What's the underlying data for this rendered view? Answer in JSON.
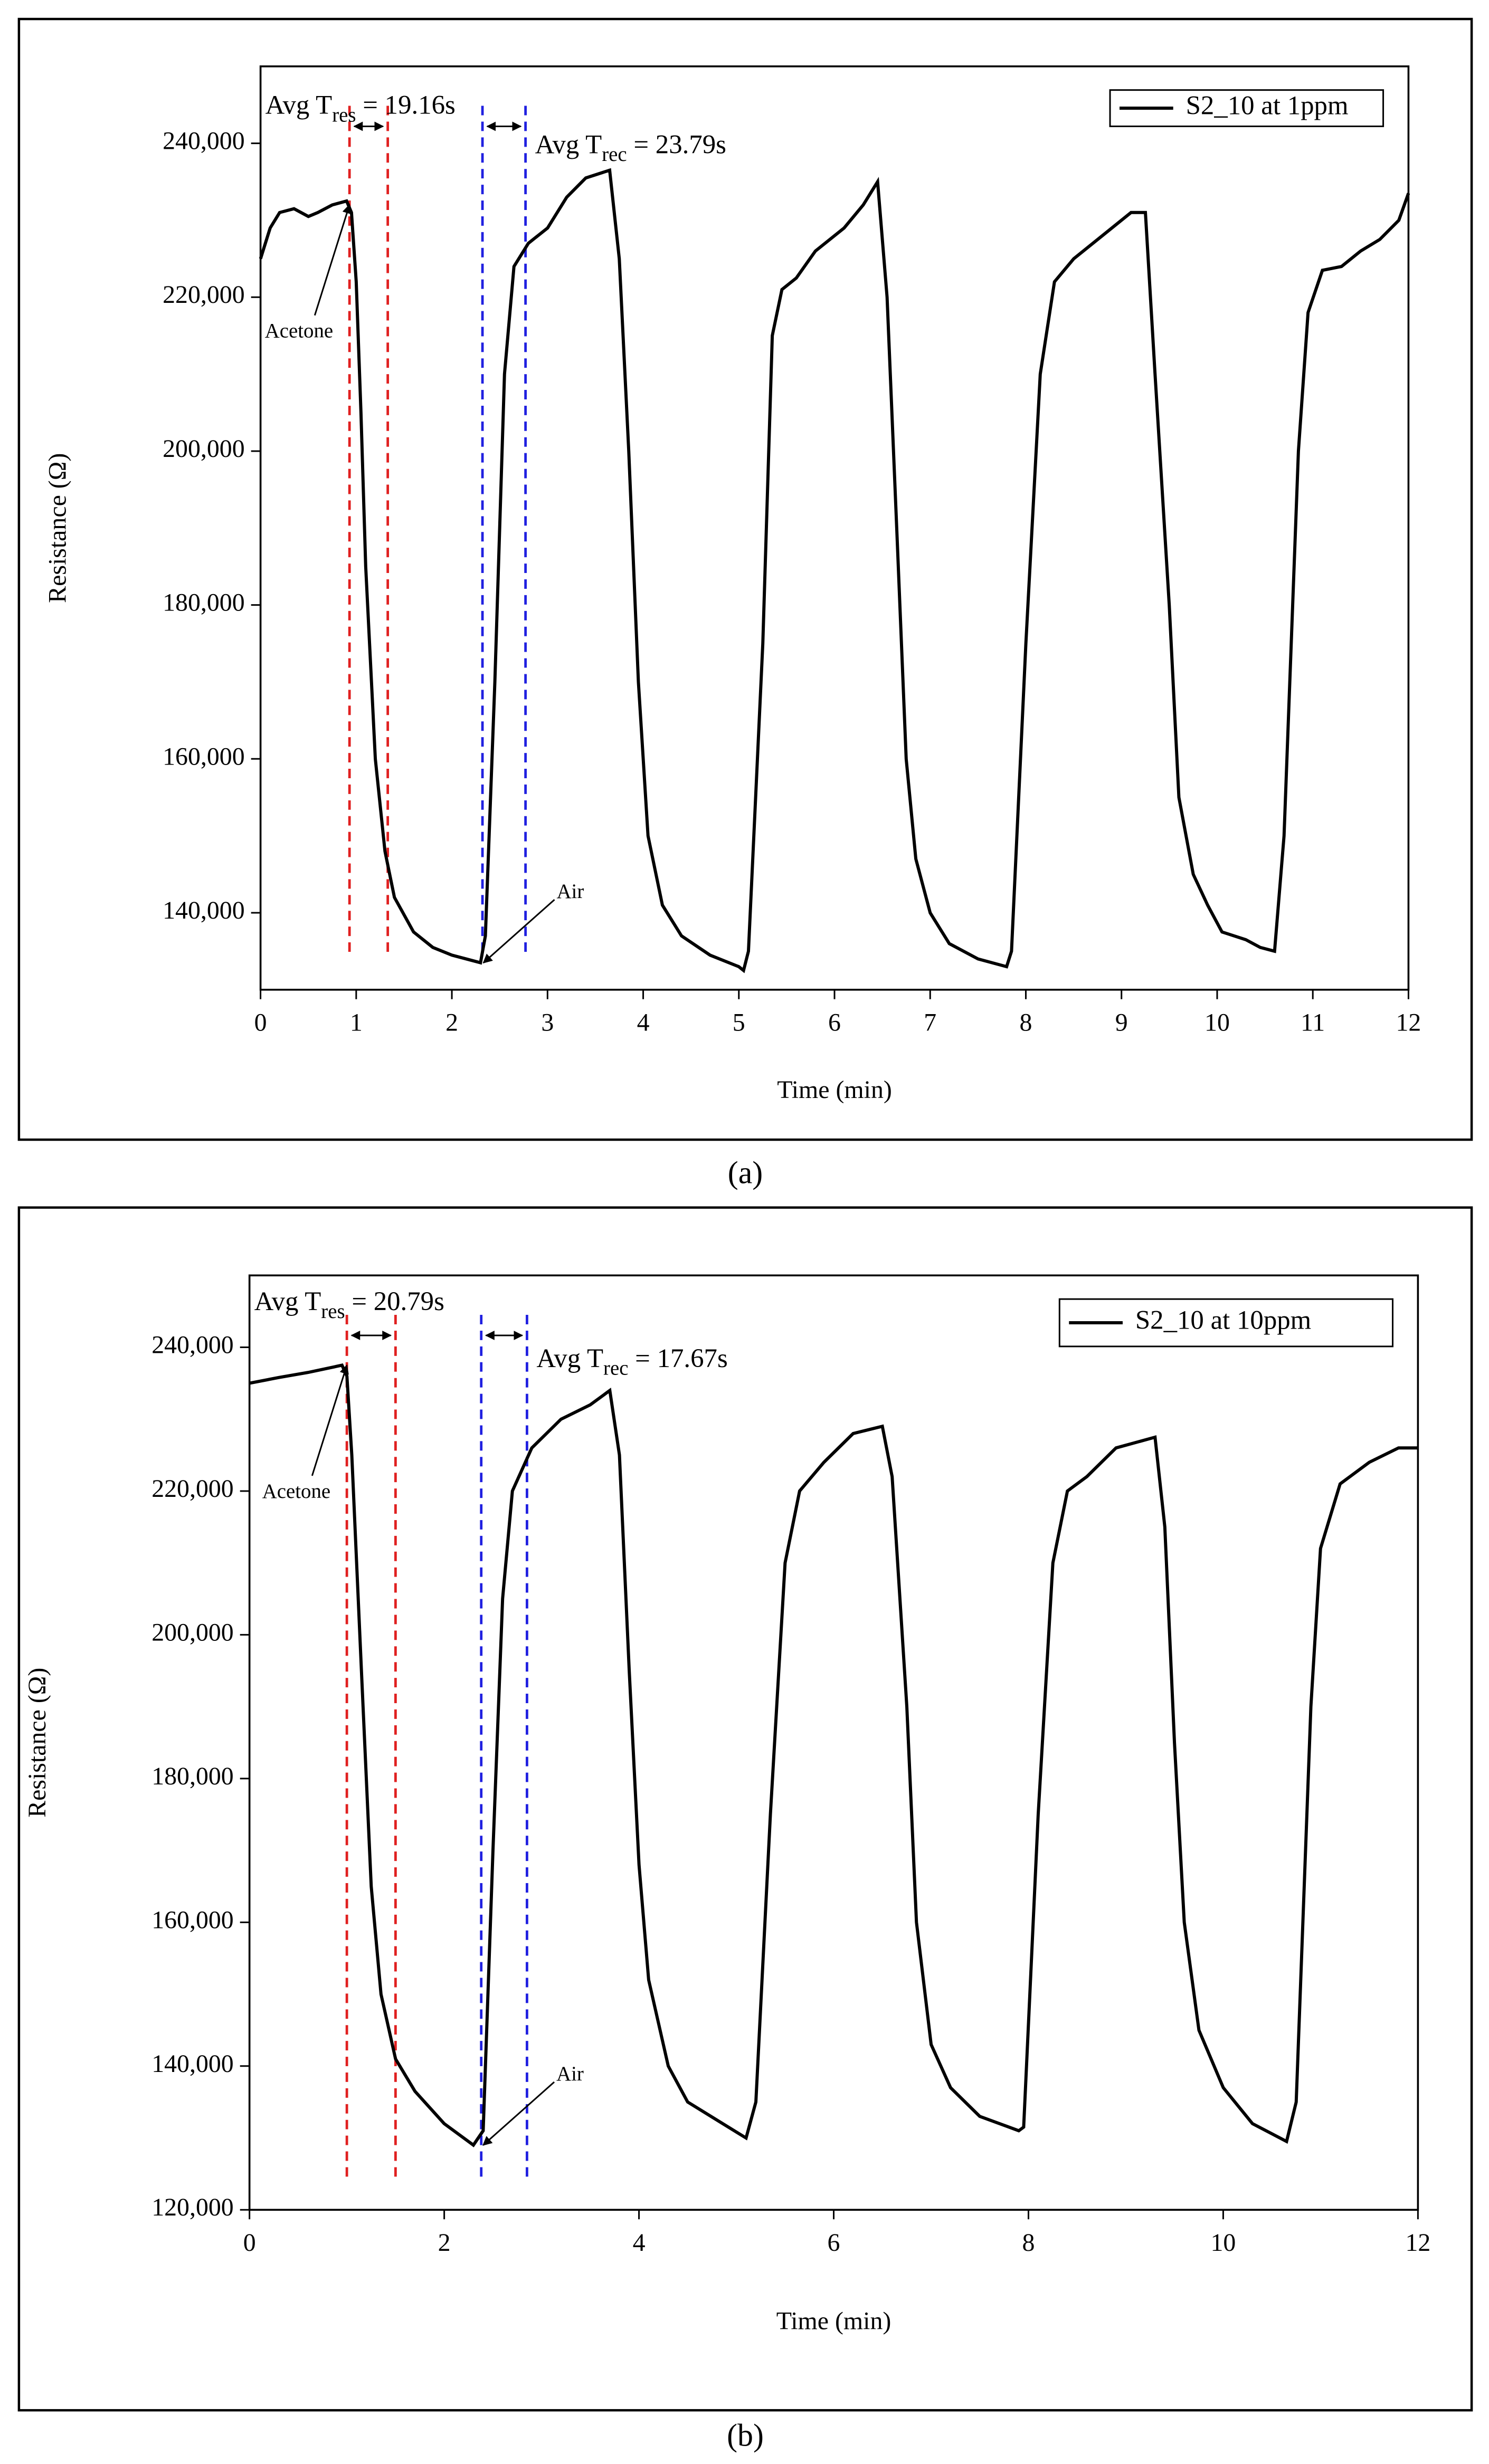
{
  "chart_data": [
    {
      "type": "line",
      "caption": "(a)",
      "xlabel": "Time (min)",
      "ylabel": "Resistance (Ω)",
      "xlim": [
        0,
        12
      ],
      "xticks": [
        0,
        1,
        2,
        3,
        4,
        5,
        6,
        7,
        8,
        9,
        10,
        11,
        12
      ],
      "ylim": [
        130000,
        250000
      ],
      "yticks": [
        {
          "value": 140000,
          "label": "140,000"
        },
        {
          "value": 160000,
          "label": "160,000"
        },
        {
          "value": 180000,
          "label": "180,000"
        },
        {
          "value": 200000,
          "label": "200,000"
        },
        {
          "value": 220000,
          "label": "220,000"
        },
        {
          "value": 240000,
          "label": "240,000"
        }
      ],
      "legend": "upper right",
      "series": [
        {
          "name": "S2_10 at 1ppm",
          "color": "#000000",
          "x": [
            0,
            0.1,
            0.2,
            0.35,
            0.5,
            0.6,
            0.75,
            0.9,
            0.95,
            1.0,
            1.05,
            1.1,
            1.2,
            1.3,
            1.4,
            1.6,
            1.8,
            2.0,
            2.3,
            2.35,
            2.45,
            2.55,
            2.65,
            2.8,
            3.0,
            3.2,
            3.4,
            3.65,
            3.75,
            3.85,
            3.95,
            4.05,
            4.2,
            4.4,
            4.7,
            5.0,
            5.05,
            5.1,
            5.25,
            5.35,
            5.45,
            5.6,
            5.8,
            6.1,
            6.3,
            6.45,
            6.55,
            6.65,
            6.75,
            6.85,
            7.0,
            7.2,
            7.5,
            7.8,
            7.85,
            8.0,
            8.15,
            8.3,
            8.5,
            8.8,
            9.1,
            9.25,
            9.35,
            9.5,
            9.6,
            9.75,
            9.9,
            10.05,
            10.3,
            10.45,
            10.6,
            10.7,
            10.85,
            10.95,
            11.1,
            11.3,
            11.5,
            11.7,
            11.9,
            12.0
          ],
          "values": [
            225000,
            229000,
            231000,
            231500,
            230500,
            231000,
            232000,
            232500,
            231000,
            222000,
            205000,
            185000,
            160000,
            148000,
            142000,
            137500,
            135500,
            134500,
            133500,
            137000,
            170000,
            210000,
            224000,
            227000,
            229000,
            233000,
            235500,
            236500,
            225000,
            200000,
            170000,
            150000,
            141000,
            137000,
            134500,
            133000,
            132500,
            135000,
            175000,
            215000,
            221000,
            222500,
            226000,
            229000,
            232000,
            235000,
            220000,
            190000,
            160000,
            147000,
            140000,
            136000,
            134000,
            133000,
            135000,
            175000,
            210000,
            222000,
            225000,
            228000,
            231000,
            231000,
            210000,
            180000,
            155000,
            145000,
            141000,
            137500,
            136500,
            135500,
            135000,
            150000,
            200000,
            218000,
            223500,
            224000,
            226000,
            227500,
            230000,
            233500
          ]
        }
      ],
      "vlines": [
        {
          "x": 0.93,
          "color": "#e02020"
        },
        {
          "x": 1.33,
          "color": "#e02020"
        },
        {
          "x": 2.32,
          "color": "#2020e0"
        },
        {
          "x": 2.77,
          "color": "#2020e0"
        }
      ],
      "res_label": {
        "text": "Avg T",
        "sub": "res",
        "rest": " = 19.16s"
      },
      "rec_label": {
        "text": "Avg T",
        "sub": "rec",
        "rest": " = 23.79s"
      },
      "annotations": [
        {
          "text": "Acetone",
          "x": 0.93,
          "y": 232000
        },
        {
          "text": "Air",
          "x": 2.33,
          "y": 133500
        }
      ]
    },
    {
      "type": "line",
      "caption": "(b)",
      "xlabel": "Time (min)",
      "ylabel": "Resistance (Ω)",
      "xlim": [
        0,
        12
      ],
      "xticks": [
        0,
        2,
        4,
        6,
        8,
        10,
        12
      ],
      "ylim": [
        120000,
        250000
      ],
      "yticks": [
        {
          "value": 120000,
          "label": "120,000"
        },
        {
          "value": 140000,
          "label": "140,000"
        },
        {
          "value": 160000,
          "label": "160,000"
        },
        {
          "value": 180000,
          "label": "180,000"
        },
        {
          "value": 200000,
          "label": "200,000"
        },
        {
          "value": 220000,
          "label": "220,000"
        },
        {
          "value": 240000,
          "label": "240,000"
        }
      ],
      "legend": "upper right",
      "series": [
        {
          "name": "S2_10 at 10ppm",
          "color": "#000000",
          "x": [
            0,
            0.3,
            0.6,
            0.95,
            1.0,
            1.05,
            1.15,
            1.25,
            1.35,
            1.5,
            1.7,
            2.0,
            2.3,
            2.4,
            2.5,
            2.6,
            2.7,
            2.9,
            3.2,
            3.5,
            3.7,
            3.8,
            3.9,
            4.0,
            4.1,
            4.3,
            4.5,
            4.8,
            5.1,
            5.2,
            5.35,
            5.5,
            5.65,
            5.9,
            6.2,
            6.5,
            6.6,
            6.75,
            6.85,
            7.0,
            7.2,
            7.5,
            7.9,
            7.95,
            8.1,
            8.25,
            8.4,
            8.6,
            8.9,
            9.3,
            9.4,
            9.5,
            9.6,
            9.75,
            10.0,
            10.3,
            10.65,
            10.75,
            10.9,
            11.0,
            11.2,
            11.5,
            11.8,
            12.0
          ],
          "values": [
            235000,
            235800,
            236500,
            237500,
            236000,
            225000,
            195000,
            165000,
            150000,
            141000,
            136500,
            132000,
            129000,
            131000,
            170000,
            205000,
            220000,
            226000,
            230000,
            232000,
            234000,
            225000,
            195000,
            168000,
            152000,
            140000,
            135000,
            132500,
            130000,
            135000,
            175000,
            210000,
            220000,
            224000,
            228000,
            229000,
            222000,
            190000,
            160000,
            143000,
            137000,
            133000,
            131000,
            131500,
            175000,
            210000,
            220000,
            222000,
            226000,
            227500,
            215000,
            185000,
            160000,
            145000,
            137000,
            132000,
            129500,
            135000,
            190000,
            212000,
            221000,
            224000,
            226000,
            226000
          ]
        }
      ],
      "vlines": [
        {
          "x": 1.0,
          "color": "#e02020"
        },
        {
          "x": 1.5,
          "color": "#e02020"
        },
        {
          "x": 2.38,
          "color": "#2020e0"
        },
        {
          "x": 2.85,
          "color": "#2020e0"
        }
      ],
      "res_label": {
        "text": "Avg T",
        "sub": "res",
        "rest": " = 20.79s"
      },
      "rec_label": {
        "text": "Avg T",
        "sub": "rec",
        "rest": " = 17.67s"
      },
      "annotations": [
        {
          "text": "Acetone",
          "x": 1.0,
          "y": 237500
        },
        {
          "text": "Air",
          "x": 2.4,
          "y": 129000
        }
      ]
    }
  ]
}
